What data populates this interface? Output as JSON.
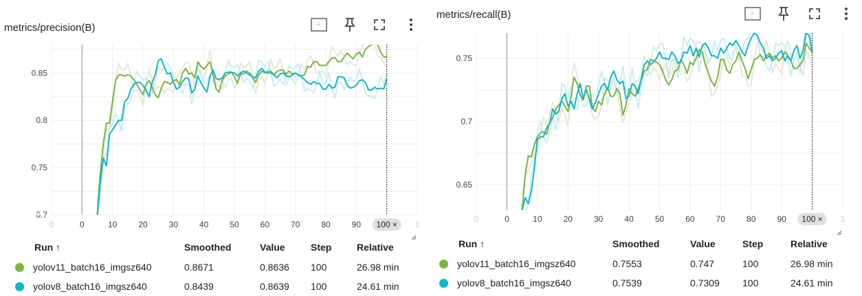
{
  "colors": {
    "green": "#7cb342",
    "cyan": "#12b5cb",
    "green_light": "#dfe9d3",
    "cyan_light": "#c3ecf3"
  },
  "table_headers": {
    "run": "Run ↑",
    "smoothed": "Smoothed",
    "value": "Value",
    "step": "Step",
    "relative": "Relative"
  },
  "toolbar": {
    "fit_icon": "fit-domain-icon",
    "pin_icon": "pin-icon",
    "fullscreen_icon": "fullscreen-icon",
    "more_icon": "more-vert-icon"
  },
  "panels": [
    {
      "title": "metrics/precision(B)",
      "step_badge": "100 ×",
      "rows": [
        {
          "run": "yolov11_batch16_imgsz640",
          "smoothed": "0.8671",
          "value": "0.8636",
          "step": "100",
          "relative": "26.98 min",
          "color": "#7cb342"
        },
        {
          "run": "yolov8_batch16_imgsz640",
          "smoothed": "0.8439",
          "value": "0.8639",
          "step": "100",
          "relative": "24.61 min",
          "color": "#12b5cb"
        }
      ]
    },
    {
      "title": "metrics/recall(B)",
      "step_badge": "100 ×",
      "rows": [
        {
          "run": "yolov11_batch16_imgsz640",
          "smoothed": "0.7553",
          "value": "0.747",
          "step": "100",
          "relative": "26.98 min",
          "color": "#7cb342"
        },
        {
          "run": "yolov8_batch16_imgsz640",
          "smoothed": "0.7539",
          "value": "0.7309",
          "step": "100",
          "relative": "24.61 min",
          "color": "#12b5cb"
        }
      ]
    }
  ],
  "chart_data": [
    {
      "type": "line",
      "title": "metrics/precision(B)",
      "x_ticks": [
        "0",
        "0",
        "10",
        "20",
        "30",
        "40",
        "50",
        "60",
        "70",
        "80",
        "90",
        "1"
      ],
      "y_ticks": [
        "0.85",
        "0.8",
        "0.75",
        "0.7"
      ],
      "xlim": [
        -10,
        110
      ],
      "ylim": [
        0.7,
        0.88
      ],
      "grid": true,
      "series": [
        {
          "name": "yolov11_batch16_imgsz640",
          "smoothed": true,
          "x": [
            5,
            6,
            7,
            8,
            9,
            10,
            11,
            12,
            13,
            14,
            15,
            16,
            17,
            18,
            19,
            20,
            21,
            22,
            23,
            24,
            25,
            26,
            27,
            28,
            29,
            30,
            31,
            32,
            33,
            34,
            35,
            36,
            37,
            38,
            39,
            40,
            41,
            42,
            43,
            44,
            45,
            46,
            47,
            48,
            49,
            50,
            51,
            52,
            53,
            54,
            55,
            56,
            57,
            58,
            59,
            60,
            61,
            62,
            63,
            64,
            65,
            66,
            67,
            68,
            69,
            70,
            71,
            72,
            73,
            74,
            75,
            76,
            77,
            78,
            79,
            80,
            81,
            82,
            83,
            84,
            85,
            86,
            87,
            88,
            89,
            90,
            91,
            92,
            93,
            94,
            95,
            96,
            97,
            98,
            99,
            100
          ],
          "y": [
            0.7,
            0.745,
            0.776,
            0.797,
            0.797,
            0.82,
            0.842,
            0.848,
            0.848,
            0.847,
            0.848,
            0.847,
            0.843,
            0.838,
            0.832,
            0.827,
            0.838,
            0.842,
            0.835,
            0.827,
            0.824,
            0.834,
            0.841,
            0.84,
            0.838,
            0.842,
            0.843,
            0.838,
            0.85,
            0.855,
            0.849,
            0.85,
            0.845,
            0.862,
            0.857,
            0.854,
            0.858,
            0.862,
            0.848,
            0.833,
            0.83,
            0.843,
            0.847,
            0.849,
            0.851,
            0.846,
            0.839,
            0.849,
            0.849,
            0.852,
            0.85,
            0.845,
            0.84,
            0.848,
            0.852,
            0.85,
            0.852,
            0.852,
            0.848,
            0.852,
            0.853,
            0.853,
            0.849,
            0.852,
            0.849,
            0.85,
            0.848,
            0.847,
            0.848,
            0.857,
            0.856,
            0.862,
            0.862,
            0.858,
            0.858,
            0.858,
            0.862,
            0.866,
            0.866,
            0.862,
            0.862,
            0.867,
            0.871,
            0.868,
            0.865,
            0.87,
            0.872,
            0.867,
            0.875,
            0.878,
            0.88,
            0.882,
            0.88,
            0.872,
            0.867,
            0.867
          ]
        },
        {
          "name": "yolov8_batch16_imgsz640",
          "smoothed": true,
          "x": [
            5,
            6,
            7,
            8,
            9,
            10,
            11,
            12,
            13,
            14,
            15,
            16,
            17,
            18,
            19,
            20,
            21,
            22,
            23,
            24,
            25,
            26,
            27,
            28,
            29,
            30,
            31,
            32,
            33,
            34,
            35,
            36,
            37,
            38,
            39,
            40,
            41,
            42,
            43,
            44,
            45,
            46,
            47,
            48,
            49,
            50,
            51,
            52,
            53,
            54,
            55,
            56,
            57,
            58,
            59,
            60,
            61,
            62,
            63,
            64,
            65,
            66,
            67,
            68,
            69,
            70,
            71,
            72,
            73,
            74,
            75,
            76,
            77,
            78,
            79,
            80,
            81,
            82,
            83,
            84,
            85,
            86,
            87,
            88,
            89,
            90,
            91,
            92,
            93,
            94,
            95,
            96,
            97,
            98,
            99,
            100
          ],
          "y": [
            0.7,
            0.734,
            0.76,
            0.752,
            0.785,
            0.79,
            0.795,
            0.8,
            0.8,
            0.82,
            0.823,
            0.833,
            0.838,
            0.84,
            0.84,
            0.837,
            0.832,
            0.825,
            0.84,
            0.848,
            0.863,
            0.865,
            0.856,
            0.849,
            0.85,
            0.84,
            0.833,
            0.835,
            0.841,
            0.845,
            0.844,
            0.829,
            0.833,
            0.847,
            0.84,
            0.834,
            0.83,
            0.847,
            0.853,
            0.844,
            0.843,
            0.845,
            0.85,
            0.851,
            0.851,
            0.85,
            0.847,
            0.85,
            0.852,
            0.85,
            0.848,
            0.846,
            0.845,
            0.852,
            0.855,
            0.851,
            0.85,
            0.85,
            0.848,
            0.845,
            0.849,
            0.85,
            0.847,
            0.846,
            0.848,
            0.85,
            0.848,
            0.846,
            0.843,
            0.84,
            0.838,
            0.841,
            0.839,
            0.839,
            0.833,
            0.833,
            0.838,
            0.834,
            0.835,
            0.846,
            0.846,
            0.845,
            0.837,
            0.834,
            0.835,
            0.837,
            0.842,
            0.843,
            0.84,
            0.832,
            0.832,
            0.835,
            0.833,
            0.834,
            0.833,
            0.844
          ]
        }
      ]
    },
    {
      "type": "line",
      "title": "metrics/recall(B)",
      "x_ticks": [
        "0",
        "0",
        "10",
        "20",
        "30",
        "40",
        "50",
        "60",
        "70",
        "80",
        "90",
        "1"
      ],
      "y_ticks": [
        "0.75",
        "0.7",
        "0.65"
      ],
      "xlim": [
        -10,
        110
      ],
      "ylim": [
        0.63,
        0.77
      ],
      "grid": true,
      "series": [
        {
          "name": "yolov11_batch16_imgsz640",
          "smoothed": true,
          "x": [
            5,
            6,
            7,
            8,
            9,
            10,
            11,
            12,
            13,
            14,
            15,
            16,
            17,
            18,
            19,
            20,
            21,
            22,
            23,
            24,
            25,
            26,
            27,
            28,
            29,
            30,
            31,
            32,
            33,
            34,
            35,
            36,
            37,
            38,
            39,
            40,
            41,
            42,
            43,
            44,
            45,
            46,
            47,
            48,
            49,
            50,
            51,
            52,
            53,
            54,
            55,
            56,
            57,
            58,
            59,
            60,
            61,
            62,
            63,
            64,
            65,
            66,
            67,
            68,
            69,
            70,
            71,
            72,
            73,
            74,
            75,
            76,
            77,
            78,
            79,
            80,
            81,
            82,
            83,
            84,
            85,
            86,
            87,
            88,
            89,
            90,
            91,
            92,
            93,
            94,
            95,
            96,
            97,
            98,
            99,
            100
          ],
          "y": [
            0.63,
            0.658,
            0.673,
            0.672,
            0.682,
            0.688,
            0.691,
            0.692,
            0.69,
            0.699,
            0.703,
            0.71,
            0.713,
            0.716,
            0.712,
            0.708,
            0.72,
            0.735,
            0.73,
            0.721,
            0.717,
            0.728,
            0.728,
            0.711,
            0.708,
            0.716,
            0.713,
            0.722,
            0.727,
            0.72,
            0.72,
            0.726,
            0.722,
            0.705,
            0.713,
            0.726,
            0.722,
            0.72,
            0.726,
            0.733,
            0.74,
            0.741,
            0.749,
            0.748,
            0.747,
            0.745,
            0.74,
            0.733,
            0.729,
            0.733,
            0.74,
            0.741,
            0.749,
            0.745,
            0.738,
            0.747,
            0.745,
            0.75,
            0.757,
            0.755,
            0.745,
            0.738,
            0.732,
            0.728,
            0.735,
            0.749,
            0.749,
            0.741,
            0.738,
            0.745,
            0.748,
            0.755,
            0.748,
            0.742,
            0.734,
            0.741,
            0.749,
            0.75,
            0.753,
            0.748,
            0.752,
            0.754,
            0.75,
            0.752,
            0.748,
            0.75,
            0.755,
            0.752,
            0.748,
            0.742,
            0.742,
            0.745,
            0.748,
            0.762,
            0.758,
            0.755
          ]
        },
        {
          "name": "yolov8_batch16_imgsz640",
          "smoothed": true,
          "x": [
            5,
            6,
            7,
            8,
            9,
            10,
            11,
            12,
            13,
            14,
            15,
            16,
            17,
            18,
            19,
            20,
            21,
            22,
            23,
            24,
            25,
            26,
            27,
            28,
            29,
            30,
            31,
            32,
            33,
            34,
            35,
            36,
            37,
            38,
            39,
            40,
            41,
            42,
            43,
            44,
            45,
            46,
            47,
            48,
            49,
            50,
            51,
            52,
            53,
            54,
            55,
            56,
            57,
            58,
            59,
            60,
            61,
            62,
            63,
            64,
            65,
            66,
            67,
            68,
            69,
            70,
            71,
            72,
            73,
            74,
            75,
            76,
            77,
            78,
            79,
            80,
            81,
            82,
            83,
            84,
            85,
            86,
            87,
            88,
            89,
            90,
            91,
            92,
            93,
            94,
            95,
            96,
            97,
            98,
            99,
            100
          ],
          "y": [
            0.63,
            0.64,
            0.635,
            0.645,
            0.663,
            0.686,
            0.688,
            0.688,
            0.695,
            0.698,
            0.71,
            0.706,
            0.708,
            0.718,
            0.722,
            0.712,
            0.716,
            0.71,
            0.722,
            0.73,
            0.718,
            0.725,
            0.718,
            0.71,
            0.715,
            0.722,
            0.728,
            0.73,
            0.725,
            0.735,
            0.74,
            0.733,
            0.73,
            0.732,
            0.718,
            0.72,
            0.73,
            0.728,
            0.722,
            0.734,
            0.745,
            0.748,
            0.745,
            0.747,
            0.75,
            0.755,
            0.75,
            0.75,
            0.749,
            0.755,
            0.752,
            0.746,
            0.748,
            0.755,
            0.754,
            0.76,
            0.752,
            0.758,
            0.751,
            0.76,
            0.762,
            0.758,
            0.752,
            0.752,
            0.75,
            0.758,
            0.754,
            0.758,
            0.762,
            0.76,
            0.764,
            0.76,
            0.755,
            0.752,
            0.76,
            0.766,
            0.77,
            0.768,
            0.762,
            0.758,
            0.75,
            0.752,
            0.748,
            0.75,
            0.754,
            0.756,
            0.748,
            0.752,
            0.748,
            0.756,
            0.76,
            0.75,
            0.756,
            0.77,
            0.768,
            0.754
          ]
        }
      ]
    }
  ]
}
